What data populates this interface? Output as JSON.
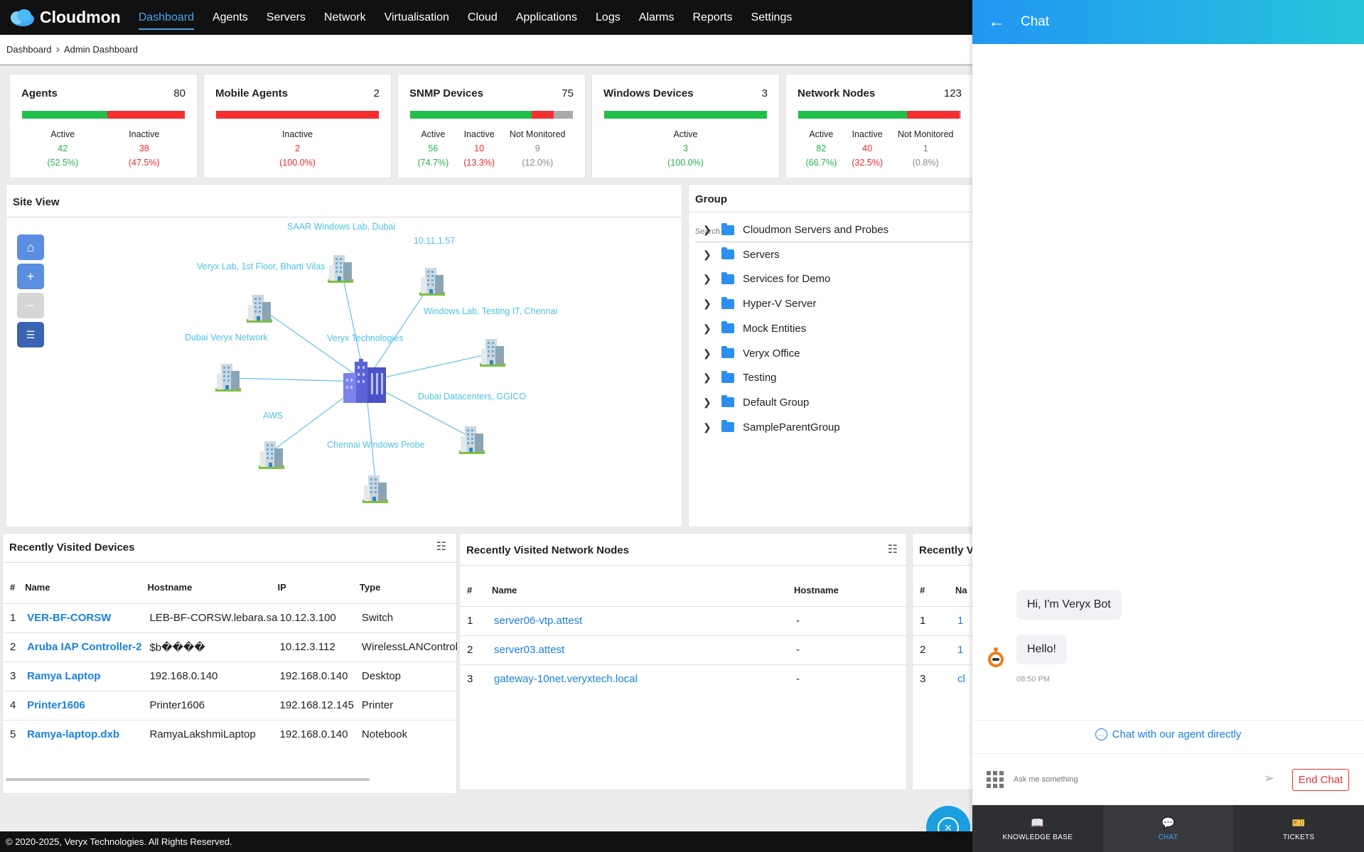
{
  "app": {
    "name": "Cloudmon"
  },
  "nav": [
    "Dashboard",
    "Agents",
    "Servers",
    "Network",
    "Virtualisation",
    "Cloud",
    "Applications",
    "Logs",
    "Alarms",
    "Reports",
    "Settings"
  ],
  "breadcrumb": [
    "Dashboard",
    "Admin Dashboard"
  ],
  "cards": [
    {
      "title": "Agents",
      "count": "80",
      "segments": [
        {
          "color": "#22c04a",
          "frac": 0.525
        },
        {
          "color": "#f52f2f",
          "frac": 0.475
        }
      ],
      "stats": [
        {
          "label": "Active",
          "value": "42",
          "pct": "(52.5%)",
          "cls": "green"
        },
        {
          "label": "Inactive",
          "value": "38",
          "pct": "(47.5%)",
          "cls": "red"
        }
      ]
    },
    {
      "title": "Mobile Agents",
      "count": "2",
      "segments": [
        {
          "color": "#f52f2f",
          "frac": 1
        }
      ],
      "stats": [
        {
          "label": "Inactive",
          "value": "2",
          "pct": "(100.0%)",
          "cls": "red"
        }
      ]
    },
    {
      "title": "SNMP Devices",
      "count": "75",
      "segments": [
        {
          "color": "#22c04a",
          "frac": 0.747
        },
        {
          "color": "#f52f2f",
          "frac": 0.133
        },
        {
          "color": "#aaaaaa",
          "frac": 0.12
        }
      ],
      "stats": [
        {
          "label": "Active",
          "value": "56",
          "pct": "(74.7%)",
          "cls": "green"
        },
        {
          "label": "Inactive",
          "value": "10",
          "pct": "(13.3%)",
          "cls": "red"
        },
        {
          "label": "Not Monitored",
          "value": "9",
          "pct": "(12.0%)",
          "cls": "grey"
        }
      ]
    },
    {
      "title": "Windows Devices",
      "count": "3",
      "segments": [
        {
          "color": "#22c04a",
          "frac": 1
        }
      ],
      "stats": [
        {
          "label": "Active",
          "value": "3",
          "pct": "(100.0%)",
          "cls": "green"
        }
      ]
    },
    {
      "title": "Network Nodes",
      "count": "123",
      "segments": [
        {
          "color": "#22c04a",
          "frac": 0.667
        },
        {
          "color": "#f52f2f",
          "frac": 0.325
        },
        {
          "color": "#aaaaaa",
          "frac": 0.008
        }
      ],
      "stats": [
        {
          "label": "Active",
          "value": "82",
          "pct": "(66.7%)",
          "cls": "green"
        },
        {
          "label": "Inactive",
          "value": "40",
          "pct": "(32.5%)",
          "cls": "red"
        },
        {
          "label": "Not Monitored",
          "value": "1",
          "pct": "(0.8%)",
          "cls": "grey"
        }
      ]
    }
  ],
  "siteview": {
    "title": "Site View",
    "center_label": "Veryx Technologies",
    "sites": [
      "SAAR Windows Lab, Dubai",
      "10.11.1.57",
      "Veryx Lab, 1st Floor, Bharti Vilas",
      "Windows Lab, Testing IT, Chennai",
      "Dubai Veryx Network",
      "Dubai Datacenters, GGICO",
      "AWS",
      "Chennai Windows Probe"
    ]
  },
  "group": {
    "title": "Group",
    "search_placeholder": "Search",
    "items": [
      "Cloudmon Servers and Probes",
      "Servers",
      "Services for Demo",
      "Hyper-V Server",
      "Mock Entities",
      "Veryx Office",
      "Testing",
      "Default Group",
      "SampleParentGroup"
    ]
  },
  "devices": {
    "title": "Recently Visited Devices",
    "columns": [
      "#",
      "Name",
      "Hostname",
      "IP",
      "Type"
    ],
    "rows": [
      [
        "1",
        "VER-BF-CORSW",
        "LEB-BF-CORSW.lebara.sa",
        "10.12.3.100",
        "Switch"
      ],
      [
        "2",
        "Aruba IAP Controller-2",
        "$b����",
        "10.12.3.112",
        "WirelessLANControl"
      ],
      [
        "3",
        "Ramya Laptop",
        "192.168.0.140",
        "192.168.0.140",
        "Desktop"
      ],
      [
        "4",
        "Printer1606",
        "Printer1606",
        "192.168.12.145",
        "Printer"
      ],
      [
        "5",
        "Ramya-laptop.dxb",
        "RamyaLakshmiLaptop",
        "192.168.0.140",
        "Notebook"
      ]
    ]
  },
  "nodes": {
    "title": "Recently Visited Network Nodes",
    "columns": [
      "#",
      "Name",
      "Hostname"
    ],
    "rows": [
      [
        "1",
        "server06-vtp.attest",
        "-"
      ],
      [
        "2",
        "server03.attest",
        "-"
      ],
      [
        "3",
        "gateway-10net.veryxtech.local",
        "-"
      ]
    ]
  },
  "third": {
    "title": "Recently V",
    "columns": [
      "#",
      "Na"
    ],
    "rows": [
      [
        "1",
        "1"
      ],
      [
        "2",
        "1"
      ],
      [
        "3",
        "cl"
      ]
    ]
  },
  "chat": {
    "title": "Chat",
    "messages": [
      "Hi, I'm Veryx Bot",
      "Hello!"
    ],
    "time": "08:50 PM",
    "agent_link": "Chat with our agent directly",
    "input_placeholder": "Ask me something",
    "end_label": "End Chat",
    "tabs": [
      "KNOWLEDGE BASE",
      "CHAT",
      "TICKETS"
    ]
  },
  "footer": "© 2020-2025, Veryx Technologies. All Rights Reserved."
}
